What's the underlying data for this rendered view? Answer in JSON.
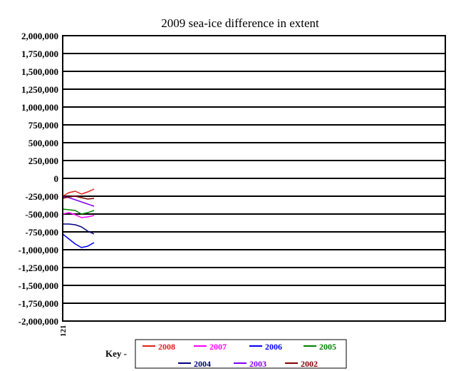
{
  "chart_data": {
    "type": "line",
    "title": "2009 sea-ice difference in extent",
    "xlabel": "",
    "ylabel": "",
    "ylim": [
      -2000000,
      2000000
    ],
    "y_ticks": [
      2000000,
      1750000,
      1500000,
      1250000,
      1000000,
      750000,
      500000,
      250000,
      0,
      -250000,
      -500000,
      -750000,
      -1000000,
      -1250000,
      -1500000,
      -1750000,
      -2000000
    ],
    "y_tick_labels": [
      "2,000,000",
      "1,750,000",
      "1,500,000",
      "1,250,000",
      "1,000,000",
      "750,000",
      "500,000",
      "250,000",
      "0",
      "-250,000",
      "-500,000",
      "-750,000",
      "-1,000,000",
      "-1,250,000",
      "-1,500,000",
      "-1,750,000",
      "-2,000,000"
    ],
    "x_tick_labels": [
      "121"
    ],
    "x_domain": [
      121,
      365
    ],
    "grid": true,
    "legend_title": "Key -",
    "legend_placement": "bottom",
    "series": [
      {
        "name": "2008",
        "color": "#e0201b",
        "x": [
          121,
          125,
          129,
          133,
          137,
          141
        ],
        "values": [
          -250000,
          -200000,
          -180000,
          -220000,
          -190000,
          -150000
        ]
      },
      {
        "name": "2007",
        "color": "#ff00ff",
        "x": [
          121,
          125,
          129,
          133,
          137,
          141
        ],
        "values": [
          -500000,
          -480000,
          -510000,
          -550000,
          -540000,
          -520000
        ]
      },
      {
        "name": "2006",
        "color": "#0000ff",
        "x": [
          121,
          125,
          129,
          133,
          137,
          141
        ],
        "values": [
          -780000,
          -850000,
          -920000,
          -970000,
          -950000,
          -900000
        ]
      },
      {
        "name": "2005",
        "color": "#008000",
        "x": [
          121,
          125,
          129,
          133,
          137,
          141
        ],
        "values": [
          -430000,
          -440000,
          -450000,
          -500000,
          -480000,
          -450000
        ]
      },
      {
        "name": "2004",
        "color": "#000080",
        "x": [
          121,
          125,
          129,
          133,
          137,
          141
        ],
        "values": [
          -640000,
          -640000,
          -650000,
          -680000,
          -740000,
          -780000
        ]
      },
      {
        "name": "2003",
        "color": "#8000ff",
        "x": [
          121,
          125,
          129,
          133,
          137,
          141
        ],
        "values": [
          -260000,
          -270000,
          -300000,
          -330000,
          -360000,
          -390000
        ]
      },
      {
        "name": "2002",
        "color": "#800000",
        "x": [
          121,
          125,
          129,
          133,
          137,
          141
        ],
        "values": [
          -280000,
          -260000,
          -250000,
          -270000,
          -290000,
          -280000
        ]
      }
    ]
  }
}
